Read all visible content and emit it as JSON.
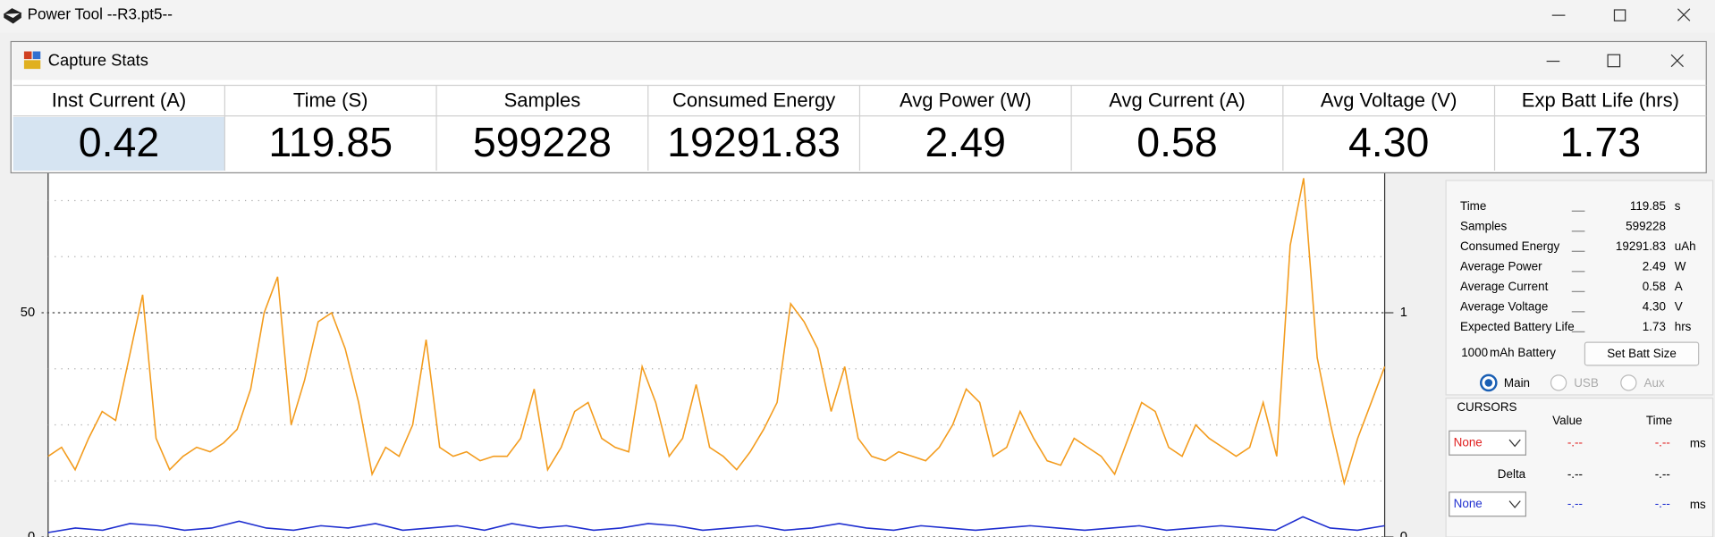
{
  "main_window": {
    "title": "Power Tool --R3.pt5--"
  },
  "dialog": {
    "title": "Capture Stats",
    "columns": [
      {
        "header": "Inst Current (A)",
        "value": "0.42"
      },
      {
        "header": "Time (S)",
        "value": "119.85"
      },
      {
        "header": "Samples",
        "value": "599228"
      },
      {
        "header": "Consumed Energy",
        "value": "19291.83"
      },
      {
        "header": "Avg Power (W)",
        "value": "2.49"
      },
      {
        "header": "Avg Current (A)",
        "value": "0.58"
      },
      {
        "header": "Avg Voltage (V)",
        "value": "4.30"
      },
      {
        "header": "Exp Batt Life (hrs)",
        "value": "1.73"
      }
    ]
  },
  "plot": {
    "type": "line",
    "ylim": [
      0,
      81.2
    ],
    "yticks": [
      0,
      50
    ],
    "minor_yticks": [
      12.5,
      25,
      37.5,
      62.5,
      75
    ],
    "y2lim": [
      0,
      1.624
    ],
    "y2ticks": [
      0,
      1
    ],
    "series": [
      {
        "color": "#f39c1e",
        "values": [
          18,
          20,
          15,
          22,
          28,
          26,
          40,
          54,
          22,
          15,
          18,
          20,
          19,
          21,
          24,
          33,
          50,
          58,
          25,
          35,
          48,
          50,
          42,
          30,
          14,
          20,
          18,
          25,
          44,
          20,
          18,
          19,
          17,
          18,
          18,
          22,
          33,
          15,
          20,
          28,
          30,
          22,
          20,
          19,
          38,
          30,
          18,
          22,
          34,
          20,
          18,
          15,
          19,
          24,
          30,
          52,
          48,
          42,
          28,
          38,
          22,
          18,
          17,
          19,
          18,
          17,
          20,
          25,
          33,
          30,
          18,
          20,
          28,
          22,
          17,
          16,
          22,
          20,
          18,
          14,
          22,
          30,
          28,
          20,
          18,
          25,
          22,
          20,
          18,
          20,
          30,
          18,
          65,
          80,
          40,
          25,
          12,
          22,
          30,
          38
        ]
      },
      {
        "color": "#1f2fd0",
        "axis": "y2",
        "values": [
          0.02,
          0.04,
          0.03,
          0.06,
          0.05,
          0.03,
          0.04,
          0.07,
          0.04,
          0.03,
          0.05,
          0.04,
          0.06,
          0.03,
          0.04,
          0.05,
          0.03,
          0.06,
          0.04,
          0.05,
          0.03,
          0.04,
          0.06,
          0.05,
          0.03,
          0.04,
          0.05,
          0.03,
          0.04,
          0.06,
          0.04,
          0.03,
          0.05,
          0.04,
          0.03,
          0.04,
          0.05,
          0.04,
          0.03,
          0.04,
          0.05,
          0.03,
          0.04,
          0.05,
          0.04,
          0.03,
          0.09,
          0.04,
          0.03,
          0.05
        ]
      }
    ]
  },
  "side_panel": {
    "stats": [
      {
        "label": "Time",
        "value": "119.85",
        "unit": "s"
      },
      {
        "label": "Samples",
        "value": "599228"
      },
      {
        "label": "Consumed Energy",
        "value": "19291.83",
        "unit": "uAh"
      },
      {
        "label": "Average Power",
        "value": "2.49",
        "unit": "W"
      },
      {
        "label": "Average Current",
        "value": "0.58",
        "unit": "A"
      },
      {
        "label": "Average Voltage",
        "value": "4.30",
        "unit": "V"
      },
      {
        "label": "Expected Battery Life",
        "value": "1.73",
        "unit": "hrs"
      }
    ],
    "battery_capacity": "1000",
    "battery_unit": "mAh Battery",
    "set_button": "Set Batt Size",
    "sources": [
      "Main",
      "USB",
      "Aux"
    ],
    "selected_source": 0,
    "cursors": {
      "title": "CURSORS",
      "value_header": "Value",
      "time_header": "Time",
      "cursor1": {
        "select": "None",
        "value": "-.--",
        "time": "-.--",
        "unit": "ms"
      },
      "delta": {
        "label": "Delta",
        "value": "-.--",
        "time": "-.--"
      },
      "cursor2": {
        "select": "None",
        "value": "-.--",
        "time": "-.--",
        "unit": "ms"
      }
    }
  }
}
